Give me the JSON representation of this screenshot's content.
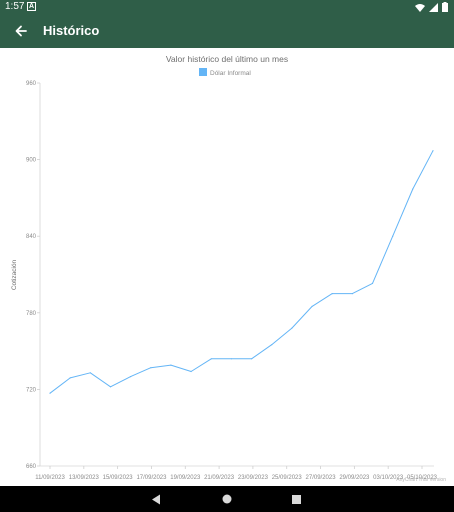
{
  "status_bar": {
    "time": "1:57",
    "notification_glyph": "A",
    "icons": [
      "wifi-icon",
      "signal-icon",
      "battery-icon"
    ]
  },
  "app_bar": {
    "title": "Histórico",
    "back_icon": "arrow-back-icon",
    "background": "#2f5e48"
  },
  "chart_data": {
    "type": "line",
    "title": "Valor histórico del último un mes",
    "legend": "Dólar Informal",
    "legend_position": "top-center",
    "ylabel": "Cotización",
    "xlabel": "",
    "ylim": [
      660,
      960
    ],
    "yticks": [
      660,
      720,
      780,
      840,
      900,
      960
    ],
    "x_tick_labels": [
      "11/09/2023",
      "13/09/2023",
      "15/09/2023",
      "17/09/2023",
      "19/09/2023",
      "21/09/2023",
      "23/09/2023",
      "25/09/2023",
      "27/09/2023",
      "29/09/2023",
      "03/10/2023",
      "05/10/2023"
    ],
    "series": [
      {
        "name": "Dólar Informal",
        "color": "#64b5f6",
        "values": [
          717,
          729,
          733,
          722,
          730,
          737,
          739,
          734,
          744,
          744,
          744,
          755,
          768,
          785,
          795,
          795,
          803,
          840,
          877,
          907
        ]
      }
    ],
    "grid": false,
    "watermark": "AnyChart Trial Version"
  },
  "nav_bar": {
    "icons": [
      "back-triangle-icon",
      "home-circle-icon",
      "recents-square-icon"
    ]
  }
}
